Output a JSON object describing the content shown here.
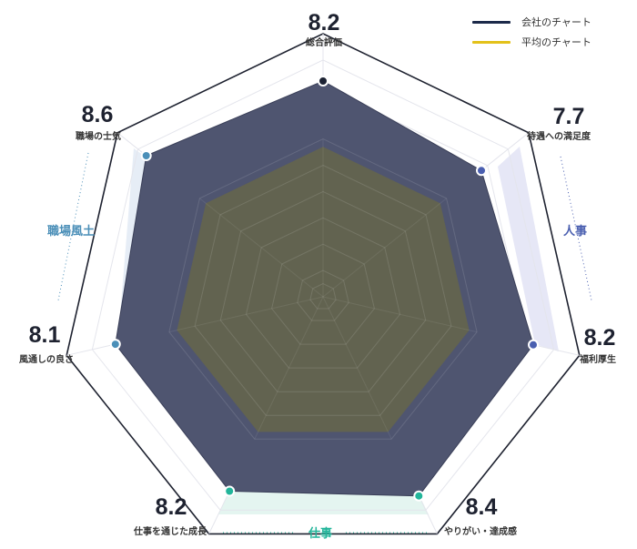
{
  "legend": {
    "company": "会社のチャート",
    "average": "平均のチャート"
  },
  "colors": {
    "company": "#1c2a4a",
    "average": "#e3c11a",
    "culture": "#4b8fb8",
    "hr": "#4a5fb0",
    "work": "#22b59a"
  },
  "groups": {
    "culture": "職場風土",
    "hr": "人事",
    "work": "仕事"
  },
  "chart_data": {
    "type": "radar",
    "axes": [
      "総合評価",
      "待遇への満足度",
      "福利厚生",
      "やりがい・達成感",
      "仕事を通じた成長",
      "風通しの良さ",
      "職場の士気"
    ],
    "scores": [
      "8.2",
      "7.7",
      "8.2",
      "8.4",
      "8.2",
      "8.1",
      "8.6"
    ],
    "max": 10,
    "series": [
      {
        "name": "会社のチャート",
        "values": [
          8.2,
          7.7,
          8.2,
          8.4,
          8.2,
          8.1,
          8.6
        ]
      },
      {
        "name": "平均のチャート",
        "values": [
          5.7,
          5.7,
          5.7,
          5.7,
          5.7,
          5.7,
          5.7
        ]
      }
    ]
  }
}
